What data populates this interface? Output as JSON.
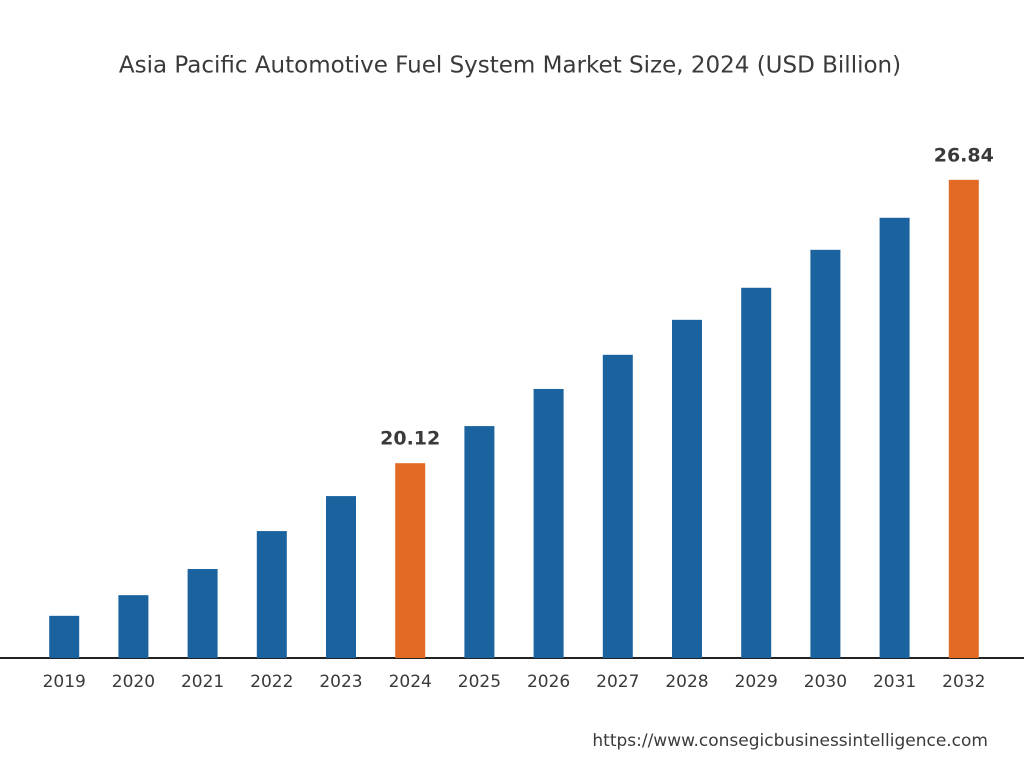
{
  "chart_data": {
    "type": "bar",
    "title": "Asia Pacific Automotive Fuel System Market Size, 2024 (USD Billion)",
    "categories": [
      "2019",
      "2020",
      "2021",
      "2022",
      "2023",
      "2024",
      "2025",
      "2026",
      "2027",
      "2028",
      "2029",
      "2030",
      "2031",
      "2032"
    ],
    "values": [
      16.5,
      16.99,
      17.61,
      18.51,
      19.34,
      20.12,
      21.0,
      21.88,
      22.69,
      23.52,
      24.28,
      25.18,
      25.94,
      26.84
    ],
    "value_labels": [
      null,
      null,
      null,
      null,
      null,
      "20.12",
      null,
      null,
      null,
      null,
      null,
      null,
      null,
      "26.84"
    ],
    "colors": [
      "#1a639f",
      "#1a639f",
      "#1a639f",
      "#1a639f",
      "#1a639f",
      "#e36a24",
      "#1a639f",
      "#1a639f",
      "#1a639f",
      "#1a639f",
      "#1a639f",
      "#1a639f",
      "#1a639f",
      "#e36a24"
    ],
    "ylim": [
      15.5,
      27.5
    ],
    "source": "https://www.consegicbusinessintelligence.com"
  }
}
